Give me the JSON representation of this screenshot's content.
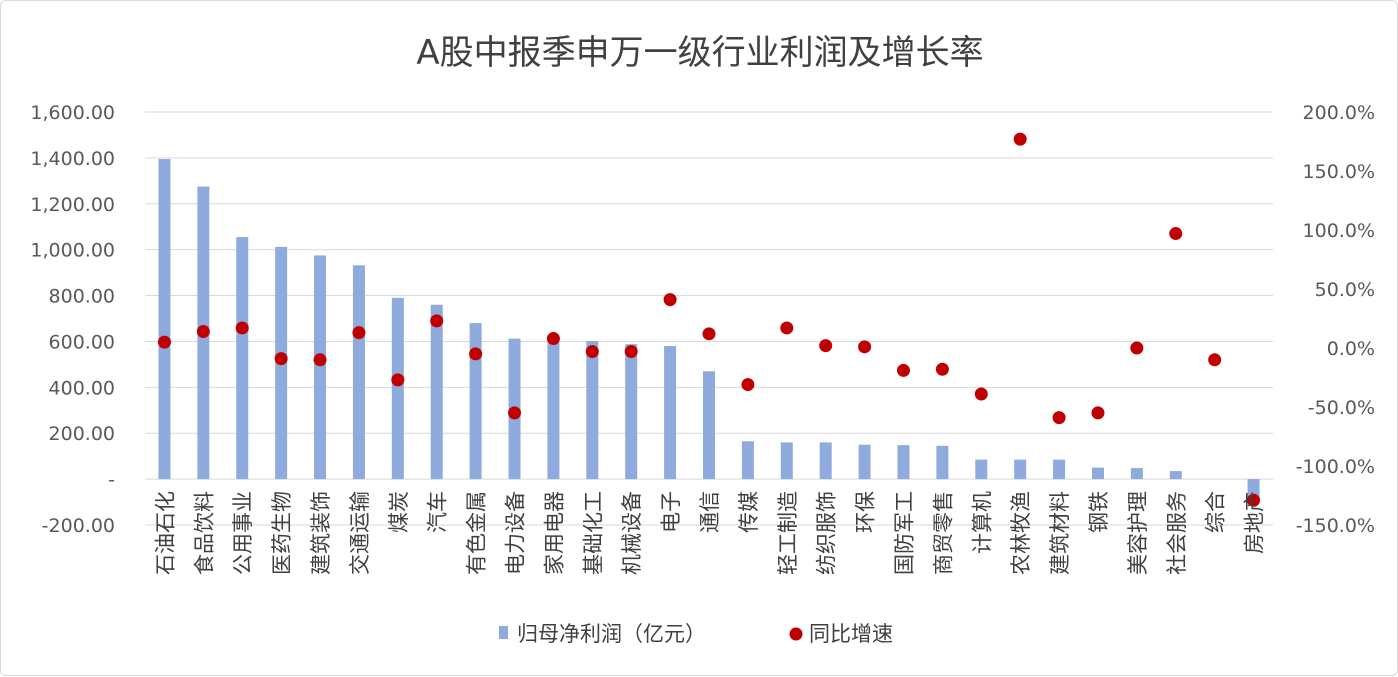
{
  "chart_data": {
    "type": "bar",
    "title": "A股中报季申万一级行业利润及增长率",
    "categories": [
      "石油石化",
      "食品饮料",
      "公用事业",
      "医药生物",
      "建筑装饰",
      "交通运输",
      "煤炭",
      "汽车",
      "有色金属",
      "电力设备",
      "家用电器",
      "基础化工",
      "机械设备",
      "电子",
      "通信",
      "传媒",
      "轻工制造",
      "纺织服饰",
      "环保",
      "国防军工",
      "商贸零售",
      "计算机",
      "农林牧渔",
      "建筑材料",
      "钢铁",
      "美容护理",
      "社会服务",
      "综合",
      "房地产"
    ],
    "series": [
      {
        "name": "归母净利润（亿元）",
        "axis": "left",
        "type": "bar",
        "color": "#8faadc",
        "values": [
          1395,
          1275,
          1055,
          1012,
          975,
          932,
          790,
          760,
          680,
          612,
          605,
          602,
          588,
          580,
          470,
          165,
          160,
          160,
          150,
          148,
          145,
          85,
          85,
          85,
          50,
          48,
          35,
          0,
          -95
        ]
      },
      {
        "name": "同比增速",
        "axis": "right",
        "type": "scatter",
        "color": "#c00000",
        "values": [
          5,
          14,
          17,
          -9,
          -10,
          13,
          -27,
          23,
          -5,
          -55,
          8,
          -3,
          -3,
          41,
          12,
          -31,
          17,
          2,
          1,
          -19,
          -18,
          -39,
          177,
          -59,
          -55,
          0,
          97,
          -10,
          -129
        ]
      }
    ],
    "y_left": {
      "ylim": [
        -200,
        1600
      ],
      "ticks": [
        "-200.00",
        "-",
        "200.00",
        "400.00",
        "600.00",
        "800.00",
        "1,000.00",
        "1,200.00",
        "1,400.00",
        "1,600.00"
      ]
    },
    "y_right": {
      "ylim": [
        -150,
        200
      ],
      "ticks": [
        "-150.0%",
        "-100.0%",
        "-50.0%",
        "0.0%",
        "50.0%",
        "100.0%",
        "150.0%",
        "200.0%"
      ]
    },
    "grid": true,
    "legend": "bottom"
  }
}
